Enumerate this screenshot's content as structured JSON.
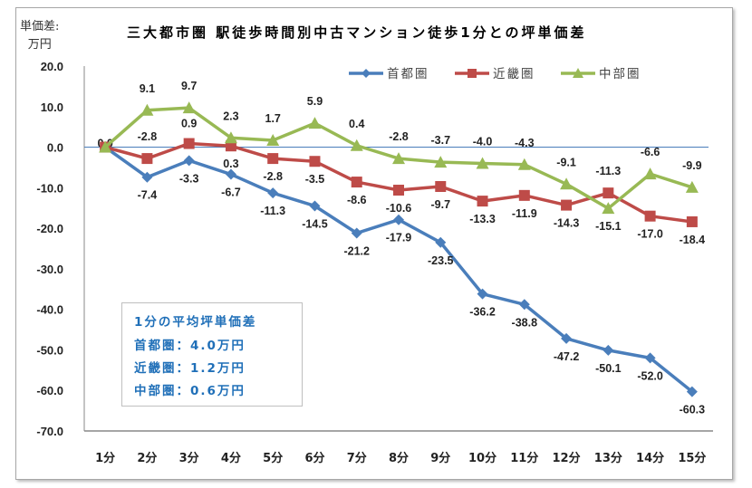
{
  "chart_data": {
    "type": "line",
    "title": "三大都市圏 駅徒歩時間別中古マンション徒歩1分との坪単価差",
    "ylabel": "単価差:万円",
    "ylabel_lines": [
      "単価差:",
      "万円"
    ],
    "ylim": [
      -70,
      20
    ],
    "yticks": [
      "20.0",
      "10.0",
      "0.0",
      "-10.0",
      "-20.0",
      "-30.0",
      "-40.0",
      "-50.0",
      "-60.0",
      "-70.0"
    ],
    "ytick_values": [
      20,
      10,
      0,
      -10,
      -20,
      -30,
      -40,
      -50,
      -60,
      -70
    ],
    "categories": [
      "1分",
      "2分",
      "3分",
      "4分",
      "5分",
      "6分",
      "7分",
      "8分",
      "9分",
      "10分",
      "11分",
      "12分",
      "13分",
      "14分",
      "15分"
    ],
    "legend_position": "top-right",
    "grid": false,
    "series": [
      {
        "name": "首都圏",
        "color": "#4a7ebb",
        "marker": "diamond",
        "values": [
          0.0,
          -7.4,
          -3.3,
          -6.7,
          -11.3,
          -14.5,
          -21.2,
          -17.9,
          -23.5,
          -36.2,
          -38.8,
          -47.2,
          -50.1,
          -52.0,
          -60.3
        ]
      },
      {
        "name": "近畿圏",
        "color": "#be4b48",
        "marker": "square",
        "values": [
          0.0,
          -2.8,
          0.9,
          0.3,
          -2.8,
          -3.5,
          -8.6,
          -10.6,
          -9.7,
          -13.3,
          -11.9,
          -14.3,
          -11.3,
          -17.0,
          -18.4
        ]
      },
      {
        "name": "中部圏",
        "color": "#98b954",
        "marker": "triangle",
        "values": [
          0.0,
          9.1,
          9.7,
          2.3,
          1.7,
          5.9,
          0.4,
          -2.8,
          -3.7,
          -4.0,
          -4.3,
          -9.1,
          -15.1,
          -6.6,
          -9.9
        ]
      }
    ],
    "annotation": {
      "title": "1分の平均坪単価差",
      "lines": [
        "首都圏：4.0万円",
        "近畿圏：1.2万円",
        "中部圏：0.6万円"
      ],
      "color": "#1f6fb8"
    }
  }
}
